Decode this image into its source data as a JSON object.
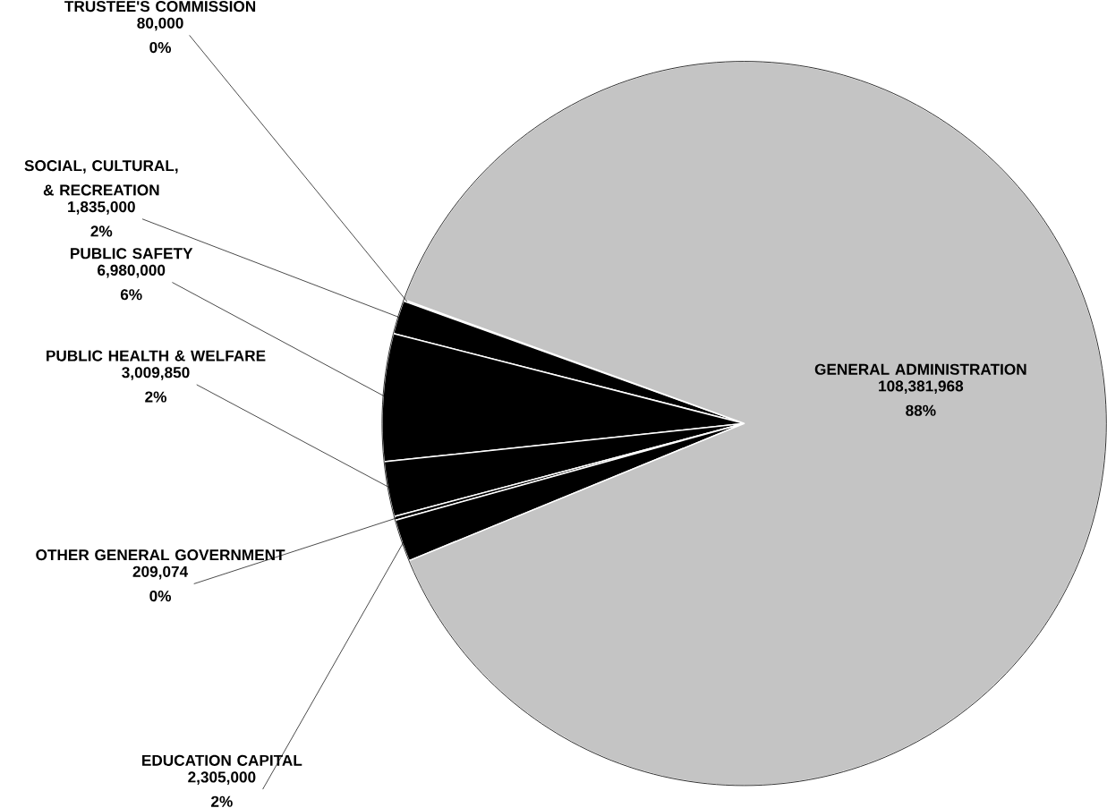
{
  "chart_data": {
    "type": "pie",
    "categories": [
      "TRUSTEE'S COMMISSION",
      "SOCIAL, CULTURAL, & RECREATION",
      "PUBLIC SAFETY",
      "PUBLIC HEALTH & WELFARE",
      "OTHER GENERAL GOVERNMENT",
      "EDUCATION CAPITAL",
      "GENERAL ADMINISTRATION"
    ],
    "values": [
      80000,
      1835000,
      6980000,
      3009850,
      209074,
      2305000,
      108381968
    ],
    "colors": [
      "#000000",
      "#000000",
      "#000000",
      "#000000",
      "#000000",
      "#000000",
      "#c4c4c4"
    ],
    "value_labels": [
      "80,000 0%",
      "1,835,000 2%",
      "6,980,000 6%",
      "3,009,850 2%",
      "209,074 0%",
      "2,305,000 2%",
      "108,381,968 88%"
    ]
  }
}
